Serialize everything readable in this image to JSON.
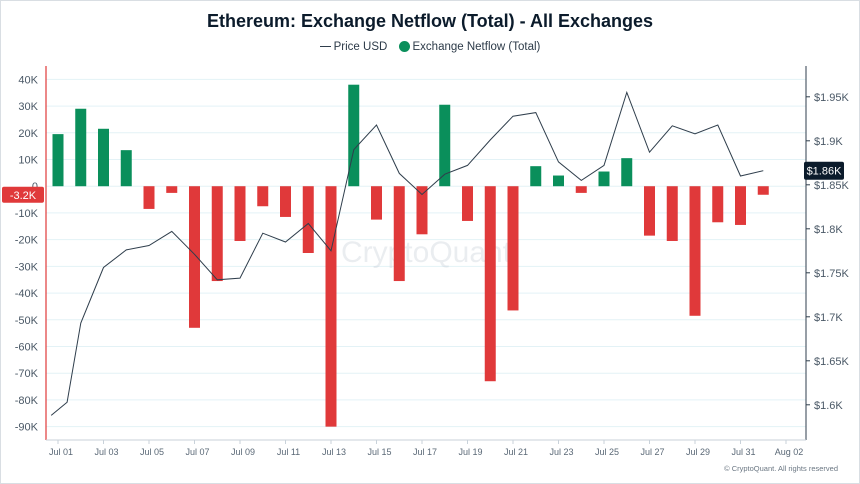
{
  "title": "Ethereum: Exchange Netflow (Total) - All Exchanges",
  "legend": {
    "price_label": "Price USD",
    "netflow_label": "Exchange Netflow (Total)"
  },
  "watermark": "CryptoQuant",
  "copyright": "© CryptoQuant. All rights reserved",
  "colors": {
    "positive": "#0a8f5b",
    "negative": "#e0393a",
    "price_line": "#2f3e4c",
    "badge_price": "#0b1b2b",
    "badge_netflow": "#e0393a",
    "grid": "#e3f2f6"
  },
  "chart_data": {
    "type": "bar",
    "title": "Ethereum: Exchange Netflow (Total) - All Exchanges",
    "x_ticks": [
      "Jul 01",
      "Jul 03",
      "Jul 05",
      "Jul 07",
      "Jul 09",
      "Jul 11",
      "Jul 13",
      "Jul 15",
      "Jul 17",
      "Jul 19",
      "Jul 21",
      "Jul 23",
      "Jul 25",
      "Jul 27",
      "Jul 29",
      "Jul 31",
      "Aug 02"
    ],
    "left_axis": {
      "ticks": [
        40000,
        30000,
        20000,
        10000,
        0,
        -10000,
        -20000,
        -30000,
        -40000,
        -50000,
        -60000,
        -70000,
        -80000,
        -90000
      ],
      "tick_labels": [
        "40K",
        "30K",
        "20K",
        "10K",
        "0",
        "-10K",
        "-20K",
        "-30K",
        "-40K",
        "-50K",
        "-60K",
        "-70K",
        "-80K",
        "-90K"
      ],
      "ylim": [
        -95000,
        45000
      ]
    },
    "right_axis": {
      "ticks": [
        1950,
        1900,
        1850,
        1800,
        1750,
        1700,
        1650,
        1600
      ],
      "tick_labels": [
        "$1.95K",
        "$1.9K",
        "$1.85K",
        "$1.8K",
        "$1.75K",
        "$1.7K",
        "$1.65K",
        "$1.6K"
      ],
      "ylim": [
        1560,
        1985
      ]
    },
    "grid": true,
    "legend_position": "top-center",
    "series": [
      {
        "name": "Exchange Netflow (Total)",
        "type": "bar",
        "axis": "left",
        "x": [
          "Jul 01",
          "Jul 02",
          "Jul 03",
          "Jul 04",
          "Jul 05",
          "Jul 06",
          "Jul 07",
          "Jul 08",
          "Jul 09",
          "Jul 10",
          "Jul 11",
          "Jul 12",
          "Jul 13",
          "Jul 14",
          "Jul 15",
          "Jul 16",
          "Jul 17",
          "Jul 18",
          "Jul 19",
          "Jul 20",
          "Jul 21",
          "Jul 22",
          "Jul 23",
          "Jul 24",
          "Jul 25",
          "Jul 26",
          "Jul 27",
          "Jul 28",
          "Jul 29",
          "Jul 30",
          "Jul 31",
          "Aug 01"
        ],
        "values": [
          19500,
          29000,
          21500,
          13500,
          -8500,
          -2500,
          -53000,
          -35500,
          -20500,
          -7500,
          -11500,
          -25000,
          -90000,
          38000,
          -12500,
          -35500,
          -18000,
          30500,
          -13000,
          -73000,
          -46500,
          7500,
          4000,
          -2500,
          5500,
          10500,
          -18500,
          -20500,
          -48500,
          -13500,
          -14500,
          -3200
        ]
      },
      {
        "name": "Price USD",
        "type": "line",
        "axis": "right",
        "x": [
          "Jul 01",
          "Jul 01",
          "Jul 02",
          "Jul 03",
          "Jul 04",
          "Jul 05",
          "Jul 06",
          "Jul 07",
          "Jul 08",
          "Jul 09",
          "Jul 10",
          "Jul 11",
          "Jul 12",
          "Jul 13",
          "Jul 14",
          "Jul 15",
          "Jul 16",
          "Jul 17",
          "Jul 18",
          "Jul 19",
          "Jul 20",
          "Jul 21",
          "Jul 22",
          "Jul 23",
          "Jul 24",
          "Jul 25",
          "Jul 26",
          "Jul 27",
          "Jul 28",
          "Jul 29",
          "Jul 30",
          "Jul 31",
          "Aug 01"
        ],
        "values": [
          1588,
          1603,
          1693,
          1756,
          1776,
          1781,
          1797,
          1771,
          1742,
          1744,
          1795,
          1785,
          1806,
          1775,
          1890,
          1918,
          1863,
          1839,
          1862,
          1872,
          1901,
          1928,
          1932,
          1876,
          1855,
          1872,
          1955,
          1887,
          1917,
          1908,
          1918,
          1860,
          1866
        ]
      }
    ],
    "current_badges": {
      "price": "$1.86K",
      "netflow": "-3.2K"
    }
  }
}
